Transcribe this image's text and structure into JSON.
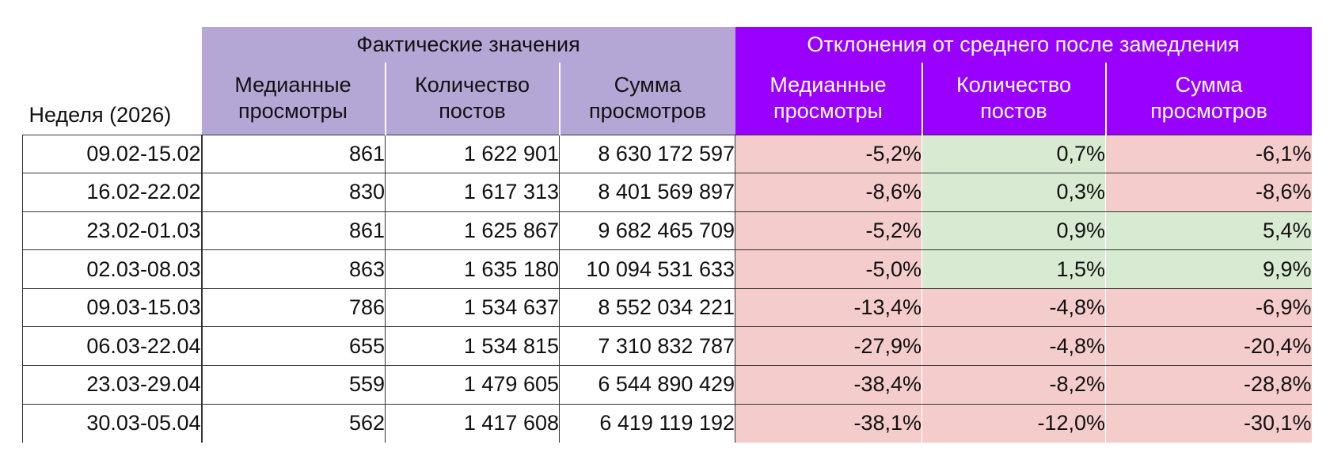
{
  "table": {
    "week_header": "Неделя (2026)",
    "group_actual": "Фактические значения",
    "group_deviation": "Отклонения от среднего после замедления",
    "actual_columns": [
      {
        "line1": "Медианные",
        "line2": "просмотры"
      },
      {
        "line1": "Количество",
        "line2": "постов"
      },
      {
        "line1": "Сумма",
        "line2": "просмотров"
      }
    ],
    "deviation_columns": [
      {
        "line1": "Медианные",
        "line2": "просмотры"
      },
      {
        "line1": "Количество",
        "line2": "постов"
      },
      {
        "line1": "Сумма",
        "line2": "просмотров"
      }
    ],
    "colors": {
      "actual_header": "#b4a7d6",
      "deviation_header": "#9900ff",
      "negative_cell": "#f4cccc",
      "positive_cell": "#d9ead3"
    },
    "rows": [
      {
        "week": "09.02-15.02",
        "median": "861",
        "posts": "1 622 901",
        "sum": "8 630 172 597",
        "d_median": "-5,2%",
        "d_posts": "0,7%",
        "d_sum": "-6,1%"
      },
      {
        "week": "16.02-22.02",
        "median": "830",
        "posts": "1 617 313",
        "sum": "8 401 569 897",
        "d_median": "-8,6%",
        "d_posts": "0,3%",
        "d_sum": "-8,6%"
      },
      {
        "week": "23.02-01.03",
        "median": "861",
        "posts": "1 625 867",
        "sum": "9 682 465 709",
        "d_median": "-5,2%",
        "d_posts": "0,9%",
        "d_sum": "5,4%"
      },
      {
        "week": "02.03-08.03",
        "median": "863",
        "posts": "1 635 180",
        "sum": "10 094 531 633",
        "d_median": "-5,0%",
        "d_posts": "1,5%",
        "d_sum": "9,9%"
      },
      {
        "week": "09.03-15.03",
        "median": "786",
        "posts": "1 534 637",
        "sum": "8 552 034 221",
        "d_median": "-13,4%",
        "d_posts": "-4,8%",
        "d_sum": "-6,9%"
      },
      {
        "week": "06.03-22.04",
        "median": "655",
        "posts": "1 534 815",
        "sum": "7 310 832 787",
        "d_median": "-27,9%",
        "d_posts": "-4,8%",
        "d_sum": "-20,4%"
      },
      {
        "week": "23.03-29.04",
        "median": "559",
        "posts": "1 479 605",
        "sum": "6 544 890 429",
        "d_median": "-38,4%",
        "d_posts": "-8,2%",
        "d_sum": "-28,8%"
      },
      {
        "week": "30.03-05.04",
        "median": "562",
        "posts": "1 417 608",
        "sum": "6 419 119 192",
        "d_median": "-38,1%",
        "d_posts": "-12,0%",
        "d_sum": "-30,1%"
      }
    ]
  }
}
